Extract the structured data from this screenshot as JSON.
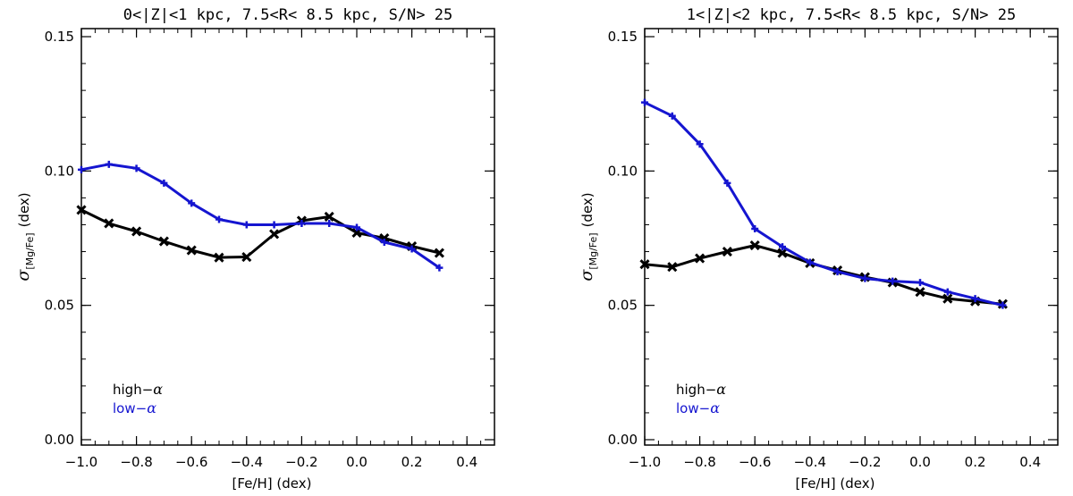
{
  "chart_data": [
    {
      "type": "line",
      "title": "0<|Z|<1 kpc, 7.5<R< 8.5 kpc, S/N> 25",
      "xlabel": "[Fe/H] (dex)",
      "ylabel_main": "σ",
      "ylabel_sub": "[Mg/Fe]",
      "ylabel_unit": "(dex)",
      "xlim": [
        -1.0,
        0.5
      ],
      "ylim": [
        -0.002,
        0.153
      ],
      "xticks": [
        -1.0,
        -0.8,
        -0.6,
        -0.4,
        -0.2,
        0.0,
        0.2,
        0.4
      ],
      "xtick_labels": [
        "−1.0",
        "−0.8",
        "−0.6",
        "−0.4",
        "−0.2",
        "0.0",
        "0.2",
        "0.4"
      ],
      "yticks": [
        0.0,
        0.05,
        0.1,
        0.15
      ],
      "ytick_labels": [
        "0.00",
        "0.05",
        "0.10",
        "0.15"
      ],
      "series": [
        {
          "name": "high-α",
          "legend_prefix": "high−",
          "legend_symbol": "α",
          "color": "#000000",
          "marker": "x",
          "x": [
            -1.0,
            -0.9,
            -0.8,
            -0.7,
            -0.6,
            -0.5,
            -0.4,
            -0.3,
            -0.2,
            -0.1,
            0.0,
            0.1,
            0.2,
            0.3
          ],
          "y": [
            0.0855,
            0.0805,
            0.0775,
            0.0738,
            0.0705,
            0.0678,
            0.068,
            0.0765,
            0.0815,
            0.083,
            0.077,
            0.075,
            0.072,
            0.0695
          ]
        },
        {
          "name": "low-α",
          "legend_prefix": "low−",
          "legend_symbol": "α",
          "color": "#1515d0",
          "marker": "+",
          "x": [
            -1.0,
            -0.9,
            -0.8,
            -0.7,
            -0.6,
            -0.5,
            -0.4,
            -0.3,
            -0.2,
            -0.1,
            0.0,
            0.1,
            0.2,
            0.3
          ],
          "y": [
            0.1005,
            0.1025,
            0.101,
            0.0955,
            0.088,
            0.082,
            0.08,
            0.08,
            0.0805,
            0.0805,
            0.079,
            0.0735,
            0.071,
            0.064
          ]
        }
      ]
    },
    {
      "type": "line",
      "title": "1<|Z|<2 kpc, 7.5<R< 8.5 kpc, S/N> 25",
      "xlabel": "[Fe/H] (dex)",
      "ylabel_main": "σ",
      "ylabel_sub": "[Mg/Fe]",
      "ylabel_unit": "(dex)",
      "xlim": [
        -1.0,
        0.5
      ],
      "ylim": [
        -0.002,
        0.153
      ],
      "xticks": [
        -1.0,
        -0.8,
        -0.6,
        -0.4,
        -0.2,
        0.0,
        0.2,
        0.4
      ],
      "xtick_labels": [
        "−1.0",
        "−0.8",
        "−0.6",
        "−0.4",
        "−0.2",
        "0.0",
        "0.2",
        "0.4"
      ],
      "yticks": [
        0.0,
        0.05,
        0.1,
        0.15
      ],
      "ytick_labels": [
        "0.00",
        "0.05",
        "0.10",
        "0.15"
      ],
      "series": [
        {
          "name": "high-α",
          "legend_prefix": "high−",
          "legend_symbol": "α",
          "color": "#000000",
          "marker": "x",
          "x": [
            -1.0,
            -0.9,
            -0.8,
            -0.7,
            -0.6,
            -0.5,
            -0.4,
            -0.3,
            -0.2,
            -0.1,
            0.0,
            0.1,
            0.2,
            0.3
          ],
          "y": [
            0.0653,
            0.0643,
            0.0675,
            0.07,
            0.0723,
            0.0695,
            0.0657,
            0.063,
            0.0605,
            0.0585,
            0.055,
            0.0525,
            0.0515,
            0.0505
          ]
        },
        {
          "name": "low-α",
          "legend_prefix": "low−",
          "legend_symbol": "α",
          "color": "#1515d0",
          "marker": "+",
          "x": [
            -1.0,
            -0.9,
            -0.8,
            -0.7,
            -0.6,
            -0.5,
            -0.4,
            -0.3,
            -0.2,
            -0.1,
            0.0,
            0.1,
            0.2,
            0.3
          ],
          "y": [
            0.1255,
            0.1205,
            0.11,
            0.0955,
            0.0785,
            0.0718,
            0.066,
            0.0625,
            0.06,
            0.059,
            0.0585,
            0.055,
            0.0525,
            0.05
          ]
        }
      ]
    }
  ]
}
